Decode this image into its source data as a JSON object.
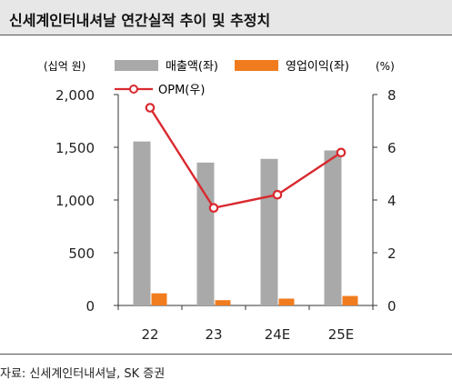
{
  "title": "신세계인터내셔날 연간실적 추이 및 추정치",
  "source": "자료: 신세계인터내셔날, SK 증권",
  "colors": {
    "sales": "#a9a9a9",
    "op": "#f07c1e",
    "opm": "#d9292f",
    "header_bg": "#e7e7e7"
  },
  "chart_data": {
    "type": "bar",
    "categories": [
      "22",
      "23",
      "24E",
      "25E"
    ],
    "left_axis_label": "(십억 원)",
    "right_axis_label": "(%)",
    "left_ticks": [
      "2,000",
      "1,500",
      "1,000",
      "500",
      "0"
    ],
    "right_ticks": [
      "8",
      "6",
      "4",
      "2",
      "0"
    ],
    "ylim_left": [
      0,
      2000
    ],
    "ylim_right": [
      0,
      8
    ],
    "series": [
      {
        "name": "매출액(좌)",
        "type": "bar",
        "axis": "left",
        "values": [
          1555,
          1355,
          1390,
          1470
        ]
      },
      {
        "name": "영업이익(좌)",
        "type": "bar",
        "axis": "left",
        "values": [
          115,
          50,
          65,
          90
        ]
      },
      {
        "name": "OPM(우)",
        "type": "line",
        "axis": "right",
        "values": [
          7.5,
          3.7,
          4.2,
          5.8
        ]
      }
    ],
    "grid": false,
    "legend": "top"
  }
}
